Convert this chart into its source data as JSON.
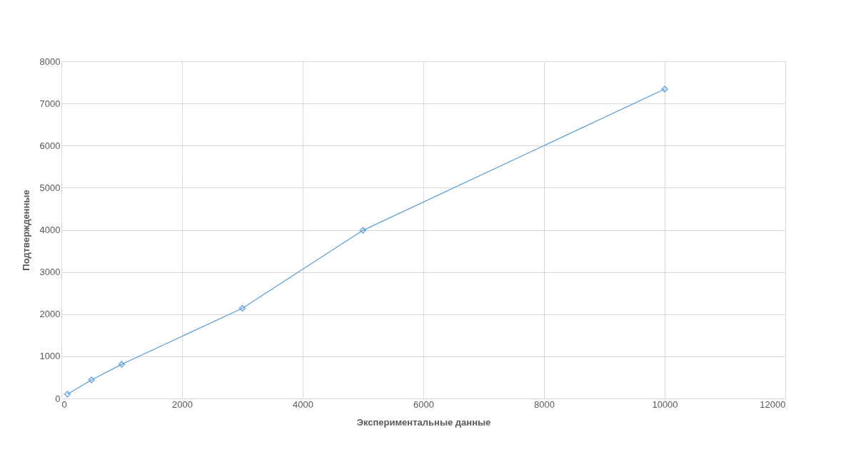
{
  "chart_data": {
    "type": "scatter",
    "xlabel": "Экспериментальные данные",
    "ylabel": "Подтвержденные",
    "series": [
      {
        "type": "line",
        "color": "#5b9bd5",
        "x": [
          100,
          500,
          1000,
          3000,
          5000,
          10000
        ],
        "values": [
          100,
          440,
          810,
          2140,
          3990,
          7340
        ]
      }
    ],
    "xlim": [
      0,
      12000
    ],
    "xticks": [
      0,
      2000,
      4000,
      6000,
      8000,
      10000,
      12000
    ],
    "ylim": [
      0,
      8000
    ],
    "yticks": [
      0,
      1000,
      2000,
      3000,
      4000,
      5000,
      6000,
      7000,
      8000
    ],
    "grid": true,
    "marker": "diamond",
    "line_style": "solid"
  }
}
